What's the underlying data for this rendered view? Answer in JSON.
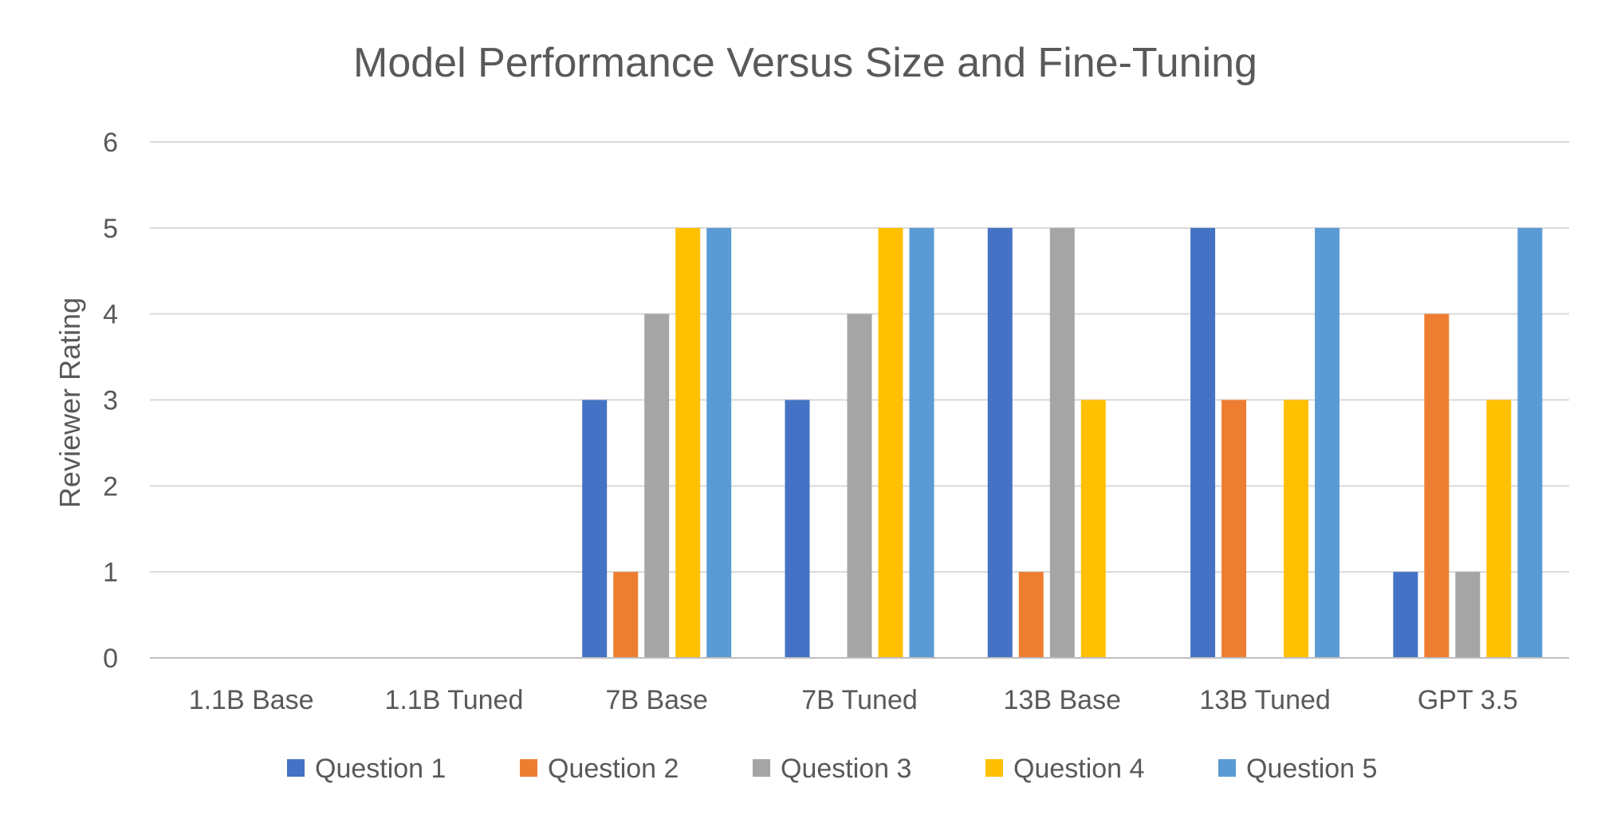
{
  "chart_data": {
    "type": "bar",
    "title": "Model Performance Versus Size and Fine-Tuning",
    "xlabel": "",
    "ylabel": "Reviewer Rating",
    "ylim": [
      0,
      6
    ],
    "yticks": [
      0,
      1,
      2,
      3,
      4,
      5,
      6
    ],
    "grid": true,
    "legend_position": "bottom",
    "categories": [
      "1.1B Base",
      "1.1B Tuned",
      "7B Base",
      "7B Tuned",
      "13B Base",
      "13B Tuned",
      "GPT 3.5"
    ],
    "series": [
      {
        "name": "Question 1",
        "color": "#4472C4",
        "values": [
          0,
          0,
          3,
          3,
          5,
          5,
          1
        ]
      },
      {
        "name": "Question 2",
        "color": "#ED7D31",
        "values": [
          0,
          0,
          1,
          0,
          1,
          3,
          4
        ]
      },
      {
        "name": "Question 3",
        "color": "#A5A5A5",
        "values": [
          0,
          0,
          4,
          4,
          5,
          0,
          1
        ]
      },
      {
        "name": "Question 4",
        "color": "#FFC000",
        "values": [
          0,
          0,
          5,
          5,
          3,
          3,
          3
        ]
      },
      {
        "name": "Question 5",
        "color": "#5B9BD5",
        "values": [
          0,
          0,
          5,
          5,
          0,
          5,
          5
        ]
      }
    ]
  }
}
